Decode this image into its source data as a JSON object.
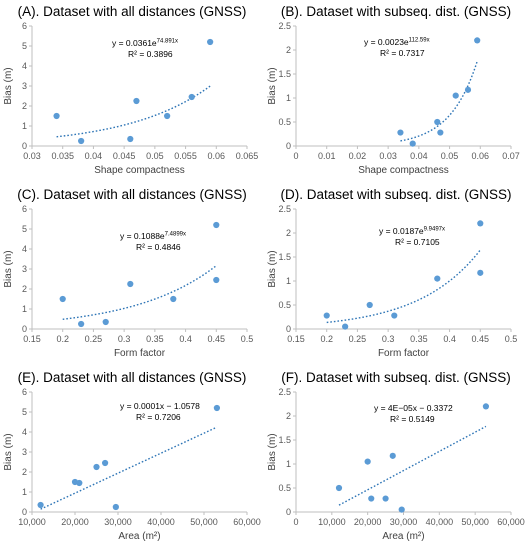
{
  "colors": {
    "point": "#5b9bd5",
    "trend": "#2e75b6",
    "axis": "#bfbfbf",
    "text": "#595959"
  },
  "chart_data": [
    {
      "type": "scatter",
      "panel": "A",
      "title": "(A). Dataset with all distances (GNSS)",
      "xlabel": "Shape compactness",
      "ylabel": "Bias (m)",
      "xlim": [
        0.03,
        0.065
      ],
      "ylim": [
        0,
        6
      ],
      "xticks": [
        0.03,
        0.035,
        0.04,
        0.045,
        0.05,
        0.055,
        0.06,
        0.065
      ],
      "yticks": [
        0,
        1,
        2,
        3,
        4,
        5,
        6
      ],
      "xtick_labels": [
        "0.03",
        "0.035",
        "0.04",
        "0.045",
        "0.05",
        "0.055",
        "0.06",
        "0.065"
      ],
      "ytick_labels": [
        "0",
        "1",
        "2",
        "3",
        "4",
        "5",
        "6"
      ],
      "x": [
        0.034,
        0.038,
        0.046,
        0.047,
        0.052,
        0.056,
        0.059
      ],
      "y": [
        1.5,
        0.25,
        0.35,
        2.25,
        1.5,
        2.45,
        5.2
      ],
      "trendline": {
        "kind": "exp",
        "a": 0.0361,
        "b": 74.891,
        "x_range": [
          0.034,
          0.059
        ]
      },
      "equation": {
        "main": "y = 0.0361e",
        "exp": "74.891x",
        "r2": "R² = 0.3896"
      }
    },
    {
      "type": "scatter",
      "panel": "B",
      "title": "(B). Dataset with subseq. dist. (GNSS)",
      "xlabel": "Shape compactness",
      "ylabel": "Bias (m)",
      "xlim": [
        0,
        0.07
      ],
      "ylim": [
        0,
        2.5
      ],
      "xticks": [
        0,
        0.01,
        0.02,
        0.03,
        0.04,
        0.05,
        0.06,
        0.07
      ],
      "yticks": [
        0,
        0.5,
        1,
        1.5,
        2,
        2.5
      ],
      "xtick_labels": [
        "0",
        "0.01",
        "0.02",
        "0.03",
        "0.04",
        "0.05",
        "0.06",
        "0.07"
      ],
      "ytick_labels": [
        "0",
        "0.5",
        "1",
        "1.5",
        "2",
        "2.5"
      ],
      "x": [
        0.034,
        0.038,
        0.046,
        0.047,
        0.052,
        0.056,
        0.059
      ],
      "y": [
        0.28,
        0.05,
        0.5,
        0.28,
        1.05,
        1.17,
        2.2
      ],
      "trendline": {
        "kind": "exp",
        "a": 0.0023,
        "b": 112.59,
        "x_range": [
          0.034,
          0.059
        ]
      },
      "equation": {
        "main": "y = 0.0023e",
        "exp": "112.59x",
        "r2": "R² = 0.7317"
      }
    },
    {
      "type": "scatter",
      "panel": "C",
      "title": "(C). Dataset with all distances (GNSS)",
      "xlabel": "Form factor",
      "ylabel": "Bias (m)",
      "xlim": [
        0.15,
        0.5
      ],
      "ylim": [
        0,
        6
      ],
      "xticks": [
        0.15,
        0.2,
        0.25,
        0.3,
        0.35,
        0.4,
        0.45,
        0.5
      ],
      "yticks": [
        0,
        1,
        2,
        3,
        4,
        5,
        6
      ],
      "xtick_labels": [
        "0.15",
        "0.2",
        "0.25",
        "0.3",
        "0.35",
        "0.4",
        "0.45",
        "0.5"
      ],
      "ytick_labels": [
        "0",
        "1",
        "2",
        "3",
        "4",
        "5",
        "6"
      ],
      "x": [
        0.2,
        0.23,
        0.27,
        0.31,
        0.38,
        0.45,
        0.45
      ],
      "y": [
        1.5,
        0.25,
        0.35,
        2.25,
        1.5,
        5.2,
        2.45
      ],
      "trendline": {
        "kind": "exp",
        "a": 0.1088,
        "b": 7.4899,
        "x_range": [
          0.2,
          0.45
        ]
      },
      "equation": {
        "main": "y = 0.1088e",
        "exp": "7.4899x",
        "r2": "R² = 0.4846"
      }
    },
    {
      "type": "scatter",
      "panel": "D",
      "title": "(D). Dataset with subseq. dist. (GNSS)",
      "xlabel": "Form factor",
      "ylabel": "Bias (m)",
      "xlim": [
        0.15,
        0.5
      ],
      "ylim": [
        0,
        2.5
      ],
      "xticks": [
        0.15,
        0.2,
        0.25,
        0.3,
        0.35,
        0.4,
        0.45,
        0.5
      ],
      "yticks": [
        0,
        0.5,
        1,
        1.5,
        2,
        2.5
      ],
      "xtick_labels": [
        "0.15",
        "0.2",
        "0.25",
        "0.3",
        "0.35",
        "0.4",
        "0.45",
        "0.5"
      ],
      "ytick_labels": [
        "0",
        "0.5",
        "1",
        "1.5",
        "2",
        "2.5"
      ],
      "x": [
        0.2,
        0.23,
        0.27,
        0.31,
        0.38,
        0.45,
        0.45
      ],
      "y": [
        0.28,
        0.05,
        0.5,
        0.28,
        1.05,
        2.2,
        1.17
      ],
      "trendline": {
        "kind": "exp",
        "a": 0.0187,
        "b": 9.9497,
        "x_range": [
          0.2,
          0.45
        ]
      },
      "equation": {
        "main": "y = 0.0187e",
        "exp": "9.9497x",
        "r2": "R² = 0.7105"
      }
    },
    {
      "type": "scatter",
      "panel": "E",
      "title": "(E). Dataset with all distances (GNSS)",
      "xlabel": "Area (m²)",
      "ylabel": "Bias (m)",
      "xlim": [
        10000,
        60000
      ],
      "ylim": [
        0,
        6
      ],
      "xticks": [
        10000,
        20000,
        30000,
        40000,
        50000,
        60000
      ],
      "yticks": [
        0,
        1,
        2,
        3,
        4,
        5,
        6
      ],
      "xtick_labels": [
        "10,000",
        "20,000",
        "30,000",
        "40,000",
        "50,000",
        "60,000"
      ],
      "ytick_labels": [
        "0",
        "1",
        "2",
        "3",
        "4",
        "5",
        "6"
      ],
      "x": [
        12000,
        20000,
        21000,
        25000,
        27000,
        29500,
        53000
      ],
      "y": [
        0.35,
        1.5,
        1.45,
        2.25,
        2.45,
        0.25,
        5.2
      ],
      "trendline": {
        "kind": "linear",
        "m": 0.0001,
        "c": -1.0578,
        "x_range": [
          12000,
          53000
        ]
      },
      "equation": {
        "main": "y = 0.0001x − 1.0578",
        "exp": "",
        "r2": "R² = 0.7206"
      }
    },
    {
      "type": "scatter",
      "panel": "F",
      "title": "(F). Dataset with subseq. dist. (GNSS)",
      "xlabel": "Area (m²)",
      "ylabel": "Bias (m)",
      "xlim": [
        0,
        60000
      ],
      "ylim": [
        0,
        2.5
      ],
      "xticks": [
        0,
        10000,
        20000,
        30000,
        40000,
        50000,
        60000
      ],
      "yticks": [
        0,
        0.5,
        1,
        1.5,
        2,
        2.5
      ],
      "xtick_labels": [
        "0",
        "10,000",
        "20,000",
        "30,000",
        "40,000",
        "50,000",
        "60,000"
      ],
      "ytick_labels": [
        "0",
        "0.5",
        "1",
        "1.5",
        "2",
        "2.5"
      ],
      "x": [
        12000,
        20000,
        21000,
        25000,
        27000,
        29500,
        53000
      ],
      "y": [
        0.5,
        1.05,
        0.28,
        0.28,
        1.17,
        0.05,
        2.2
      ],
      "trendline": {
        "kind": "linear",
        "m": 4e-05,
        "c": -0.3372,
        "x_range": [
          12000,
          53000
        ]
      },
      "equation": {
        "main": "y = 4E−05x − 0.3372",
        "exp": "",
        "r2": "R² = 0.5149"
      }
    }
  ]
}
